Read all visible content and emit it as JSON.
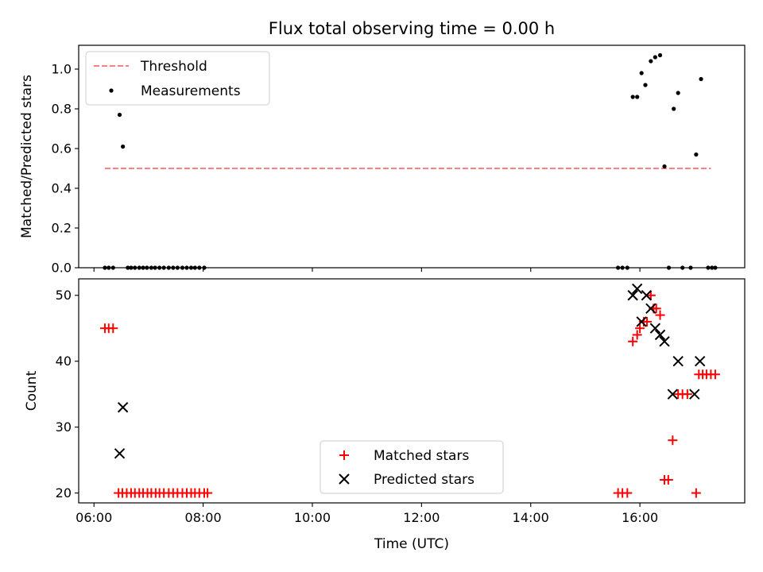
{
  "chart_data": [
    {
      "type": "scatter",
      "title": "Flux total observing time = 0.00 h",
      "xlabel": "",
      "ylabel": "Matched/Predicted stars",
      "xlim": [
        5.72,
        17.92
      ],
      "ylim": [
        0,
        1.12
      ],
      "yticks": [
        0,
        0.2,
        0.4,
        0.6,
        0.8,
        1.0
      ],
      "ytick_labels": [
        "0.0",
        "0.2",
        "0.4",
        "0.6",
        "0.8",
        "1.0"
      ],
      "xticks": [
        6,
        8,
        10,
        12,
        14,
        16
      ],
      "legend": {
        "location": "upper-left",
        "entries": [
          "Threshold",
          "Measurements"
        ]
      },
      "threshold": {
        "name": "Threshold",
        "value": 0.5,
        "x_start": 6.2,
        "x_end": 17.3,
        "color": "#ff8080",
        "style": "dashed"
      },
      "series": [
        {
          "name": "Measurements",
          "color": "#000000",
          "marker": "dot",
          "x": [
            6.2,
            6.27,
            6.35,
            6.47,
            6.53,
            6.62,
            6.68,
            6.75,
            6.83,
            6.9,
            6.97,
            7.05,
            7.12,
            7.2,
            7.28,
            7.37,
            7.45,
            7.53,
            7.62,
            7.7,
            7.78,
            7.85,
            7.93,
            8.02,
            15.6,
            15.68,
            15.77,
            15.87,
            15.95,
            16.03,
            16.1,
            16.2,
            16.28,
            16.37,
            16.45,
            16.53,
            16.62,
            16.7,
            16.78,
            16.93,
            17.03,
            17.12,
            17.25,
            17.32,
            17.38
          ],
          "y": [
            0,
            0,
            0,
            0.77,
            0.61,
            0,
            0,
            0,
            0,
            0,
            0,
            0,
            0,
            0,
            0,
            0,
            0,
            0,
            0,
            0,
            0,
            0,
            0,
            0,
            0,
            0,
            0,
            0.86,
            0.86,
            0.98,
            0.92,
            1.04,
            1.06,
            1.07,
            0.51,
            0,
            0.8,
            0.88,
            0,
            0,
            0.57,
            0.95,
            0,
            0,
            0
          ]
        }
      ]
    },
    {
      "type": "scatter",
      "title": "",
      "xlabel": "Time (UTC)",
      "ylabel": "Count",
      "xlim": [
        5.72,
        17.92
      ],
      "ylim": [
        18.5,
        52.5
      ],
      "yticks": [
        20,
        30,
        40,
        50
      ],
      "xticks": [
        6,
        8,
        10,
        12,
        14,
        16
      ],
      "xtick_labels": [
        "06:00",
        "08:00",
        "10:00",
        "12:00",
        "14:00",
        "16:00"
      ],
      "legend": {
        "location": "lower-center",
        "entries": [
          "Matched stars",
          "Predicted stars"
        ]
      },
      "series": [
        {
          "name": "Matched stars",
          "color": "#ff0000",
          "marker": "plus",
          "x": [
            6.2,
            6.27,
            6.35,
            6.45,
            6.52,
            6.6,
            6.68,
            6.75,
            6.83,
            6.9,
            6.98,
            7.05,
            7.13,
            7.2,
            7.28,
            7.37,
            7.45,
            7.53,
            7.62,
            7.7,
            7.78,
            7.85,
            7.93,
            8.02,
            8.08,
            15.6,
            15.68,
            15.77,
            15.87,
            15.95,
            16.0,
            16.07,
            16.13,
            16.2,
            16.25,
            16.3,
            16.37,
            16.45,
            16.52,
            16.6,
            16.7,
            16.78,
            16.87,
            17.03,
            17.08,
            17.15,
            17.22,
            17.3,
            17.38
          ],
          "y": [
            45,
            45,
            45,
            20,
            20,
            20,
            20,
            20,
            20,
            20,
            20,
            20,
            20,
            20,
            20,
            20,
            20,
            20,
            20,
            20,
            20,
            20,
            20,
            20,
            20,
            20,
            20,
            20,
            43,
            44,
            45,
            46,
            46,
            50,
            48,
            48,
            47,
            22,
            22,
            28,
            35,
            35,
            35,
            20,
            38,
            38,
            38,
            38,
            38
          ]
        },
        {
          "name": "Predicted stars",
          "color": "#000000",
          "marker": "x",
          "x": [
            6.47,
            6.53,
            15.87,
            15.95,
            16.03,
            16.12,
            16.2,
            16.28,
            16.37,
            16.45,
            16.6,
            16.7,
            17.0,
            17.1
          ],
          "y": [
            26,
            33,
            50,
            51,
            46,
            50,
            48,
            45,
            44,
            43,
            35,
            40,
            35,
            40
          ]
        }
      ]
    }
  ]
}
